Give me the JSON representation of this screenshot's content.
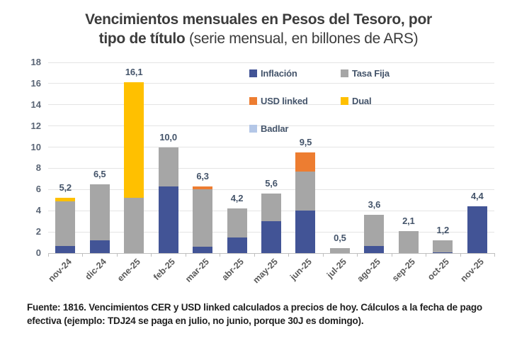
{
  "title": {
    "line1": "Vencimientos mensuales en Pesos del Tesoro, por",
    "line2_bold": "tipo de título",
    "line2_normal": " (serie mensual, en billones de ARS)"
  },
  "footnote": {
    "line1": "Fuente: 1816. Vencimientos CER y USD linked calculados a precios de hoy. Cálculos a la fecha de pago",
    "line2": "efectiva (ejemplo: TDJ24 se paga en julio, no junio, porque 30J es domingo)."
  },
  "chart_data": {
    "type": "bar",
    "stacked": true,
    "title": "Vencimientos mensuales en Pesos del Tesoro, por tipo de título (serie mensual, en billones de ARS)",
    "unit": "billones de ARS",
    "categories": [
      "nov-24",
      "dic-24",
      "ene-25",
      "feb-25",
      "mar-25",
      "abr-25",
      "may-25",
      "jun-25",
      "jul-25",
      "ago-25",
      "sep-25",
      "oct-25",
      "nov-25"
    ],
    "series": [
      {
        "name": "Inflación",
        "color": "#425496",
        "values": [
          0.7,
          1.2,
          0,
          6.3,
          0.6,
          1.5,
          3.0,
          4.0,
          0,
          0.7,
          0,
          0.1,
          4.4
        ]
      },
      {
        "name": "Tasa Fija",
        "color": "#a6a6a6",
        "values": [
          4.2,
          5.3,
          5.2,
          3.7,
          5.4,
          2.7,
          2.6,
          3.7,
          0.5,
          2.9,
          2.1,
          1.1,
          0
        ]
      },
      {
        "name": "USD linked",
        "color": "#ed7d31",
        "values": [
          0,
          0,
          0,
          0,
          0.3,
          0,
          0,
          1.8,
          0,
          0,
          0,
          0,
          0
        ]
      },
      {
        "name": "Dual",
        "color": "#ffc000",
        "values": [
          0.3,
          0,
          10.9,
          0,
          0,
          0,
          0,
          0,
          0,
          0,
          0,
          0,
          0
        ]
      },
      {
        "name": "Badlar",
        "color": "#b4c7e7",
        "values": [
          0,
          0,
          0,
          0,
          0,
          0,
          0,
          0,
          0,
          0,
          0,
          0,
          0
        ]
      }
    ],
    "totals": [
      5.2,
      6.5,
      16.1,
      10.0,
      6.3,
      4.2,
      5.6,
      9.5,
      0.5,
      3.6,
      2.1,
      1.2,
      4.4
    ],
    "total_labels": [
      "5,2",
      "6,5",
      "16,1",
      "10,0",
      "6,3",
      "4,2",
      "5,6",
      "9,5",
      "0,5",
      "3,6",
      "2,1",
      "1,2",
      "4,4"
    ],
    "ylim": [
      0,
      18
    ],
    "ytick_step": 2,
    "ytick_labels": [
      "0",
      "2",
      "4",
      "6",
      "8",
      "10",
      "12",
      "14",
      "16",
      "18"
    ],
    "grid": true,
    "legend_position": "top-right-inside",
    "legend_order": [
      "Inflación",
      "Tasa Fija",
      "USD linked",
      "Dual",
      "Badlar"
    ]
  }
}
